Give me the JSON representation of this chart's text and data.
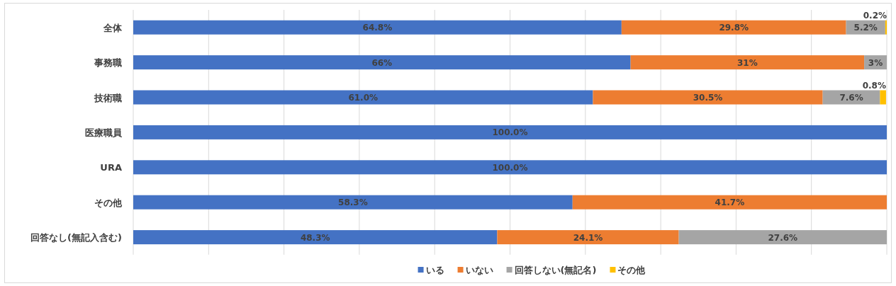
{
  "chart_data": {
    "type": "bar",
    "orientation": "horizontal",
    "stacked": true,
    "categories": [
      "全体",
      "事務職",
      "技術職",
      "医療職員",
      "URA",
      "その他",
      "回答なし(無記入含む)"
    ],
    "series": [
      {
        "name": "いる",
        "color": "#4472c4",
        "values": [
          64.8,
          66,
          61.0,
          100.0,
          100.0,
          58.3,
          48.3
        ],
        "value_labels": [
          "64.8%",
          "66%",
          "61.0%",
          "100.0%",
          "100.0%",
          "58.3%",
          "48.3%"
        ]
      },
      {
        "name": "いない",
        "color": "#ed7d31",
        "values": [
          29.8,
          31,
          30.5,
          null,
          null,
          41.7,
          24.1
        ],
        "value_labels": [
          "29.8%",
          "31%",
          "30.5%",
          null,
          null,
          "41.7%",
          "24.1%"
        ]
      },
      {
        "name": "回答しない(無記名)",
        "color": "#a5a5a5",
        "values": [
          5.2,
          3,
          7.6,
          null,
          null,
          null,
          27.6
        ],
        "value_labels": [
          "5.2%",
          "3%",
          "7.6%",
          null,
          null,
          null,
          "27.6%"
        ]
      },
      {
        "name": "その他",
        "color": "#ffc000",
        "values": [
          0.2,
          null,
          0.8,
          null,
          null,
          null,
          null
        ],
        "value_labels": [
          "0.2%",
          null,
          "0.8%",
          null,
          null,
          null,
          null
        ]
      }
    ],
    "xlim": [
      0,
      100
    ],
    "xticks": [
      {
        "value": 0,
        "label": null
      },
      {
        "value": 10,
        "label": null
      },
      {
        "value": 20,
        "label": null
      },
      {
        "value": 30,
        "label": null
      },
      {
        "value": 40,
        "label": null
      },
      {
        "value": 50,
        "label": null
      },
      {
        "value": 60,
        "label": null
      },
      {
        "value": 70,
        "label": null
      },
      {
        "value": 80,
        "label": null
      },
      {
        "value": 90,
        "label": null
      },
      {
        "value": 100,
        "label": null
      }
    ],
    "grid": "x",
    "legend": "bottom"
  }
}
